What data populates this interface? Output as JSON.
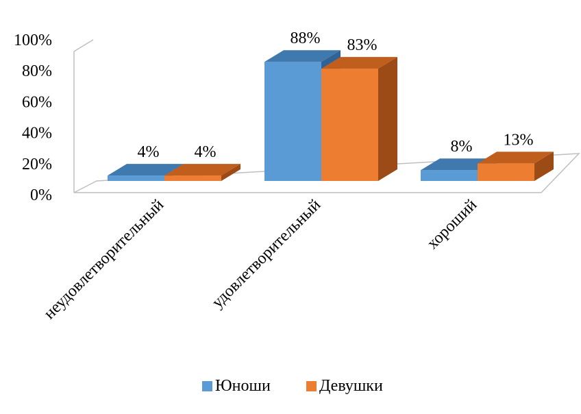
{
  "chart_data": {
    "type": "bar",
    "style": "3d-clustered-column",
    "categories": [
      "неудовлетворительный",
      "удовлетворительный",
      "хороший"
    ],
    "series": [
      {
        "name": "Юноши",
        "values": [
          4,
          88,
          8
        ],
        "color": "#5B9BD5",
        "top_color": "#3F79AE",
        "side_color": "#2F6396"
      },
      {
        "name": "Девушки",
        "values": [
          4,
          83,
          13
        ],
        "color": "#ED7D31",
        "top_color": "#C05E1E",
        "side_color": "#9C4A16"
      }
    ],
    "data_labels": [
      [
        "4%",
        "88%",
        "8%"
      ],
      [
        "4%",
        "83%",
        "13%"
      ]
    ],
    "y_ticks": [
      "0%",
      "20%",
      "40%",
      "60%",
      "80%",
      "100%"
    ],
    "ylim": [
      0,
      100
    ],
    "unit": "%",
    "grid": false,
    "legend_position": "bottom",
    "title": "",
    "xlabel": "",
    "ylabel": ""
  }
}
